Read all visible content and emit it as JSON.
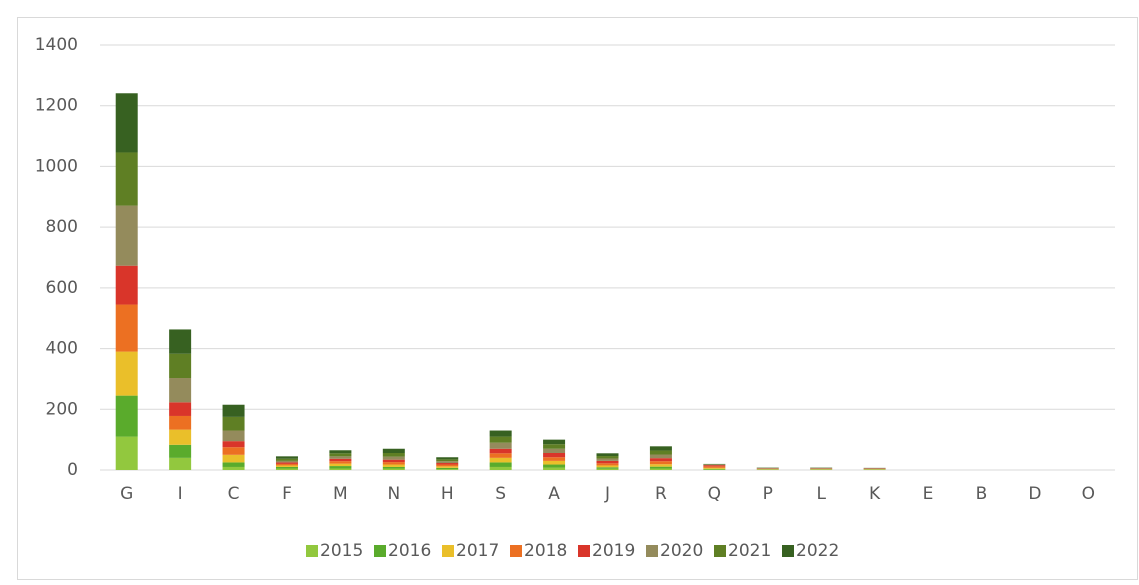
{
  "chart_data": {
    "type": "stacked_bar",
    "categories": [
      "G",
      "I",
      "C",
      "F",
      "M",
      "N",
      "H",
      "S",
      "A",
      "J",
      "R",
      "Q",
      "P",
      "L",
      "K",
      "E",
      "B",
      "D",
      "O"
    ],
    "series": [
      {
        "name": "2015",
        "color": "#92c83e",
        "values": [
          110,
          40,
          10,
          5,
          5,
          5,
          3,
          10,
          8,
          4,
          5,
          2,
          1,
          1,
          1,
          0,
          0,
          0,
          0
        ]
      },
      {
        "name": "2016",
        "color": "#5aab2c",
        "values": [
          135,
          43,
          15,
          5,
          8,
          5,
          4,
          15,
          10,
          5,
          6,
          2,
          1,
          1,
          1,
          0,
          0,
          0,
          0
        ]
      },
      {
        "name": "2017",
        "color": "#eabf2a",
        "values": [
          145,
          50,
          25,
          5,
          8,
          8,
          5,
          15,
          12,
          6,
          8,
          3,
          1,
          1,
          1,
          0,
          0,
          0,
          0
        ]
      },
      {
        "name": "2018",
        "color": "#ec7022",
        "values": [
          155,
          45,
          25,
          5,
          8,
          8,
          6,
          15,
          12,
          7,
          10,
          5,
          1,
          1,
          1,
          0,
          0,
          0,
          0
        ]
      },
      {
        "name": "2019",
        "color": "#d9352a",
        "values": [
          128,
          45,
          20,
          5,
          8,
          8,
          5,
          15,
          14,
          8,
          10,
          4,
          1,
          1,
          1,
          0,
          0,
          0,
          0
        ]
      },
      {
        "name": "2020",
        "color": "#948b5c",
        "values": [
          198,
          80,
          35,
          5,
          8,
          10,
          6,
          20,
          14,
          8,
          12,
          2,
          1,
          1,
          1,
          0,
          0,
          0,
          0
        ]
      },
      {
        "name": "2021",
        "color": "#5f7f24",
        "values": [
          175,
          80,
          45,
          7,
          10,
          12,
          6,
          20,
          15,
          8,
          13,
          1,
          1,
          1,
          0,
          0,
          0,
          0,
          0
        ]
      },
      {
        "name": "2022",
        "color": "#376121",
        "values": [
          195,
          80,
          40,
          8,
          10,
          14,
          7,
          20,
          15,
          9,
          14,
          1,
          1,
          1,
          1,
          0,
          0,
          0,
          0
        ]
      }
    ],
    "ylim": [
      0,
      1400
    ],
    "yticks": [
      0,
      200,
      400,
      600,
      800,
      1000,
      1200,
      1400
    ],
    "grid": true,
    "legend": "bottom"
  }
}
